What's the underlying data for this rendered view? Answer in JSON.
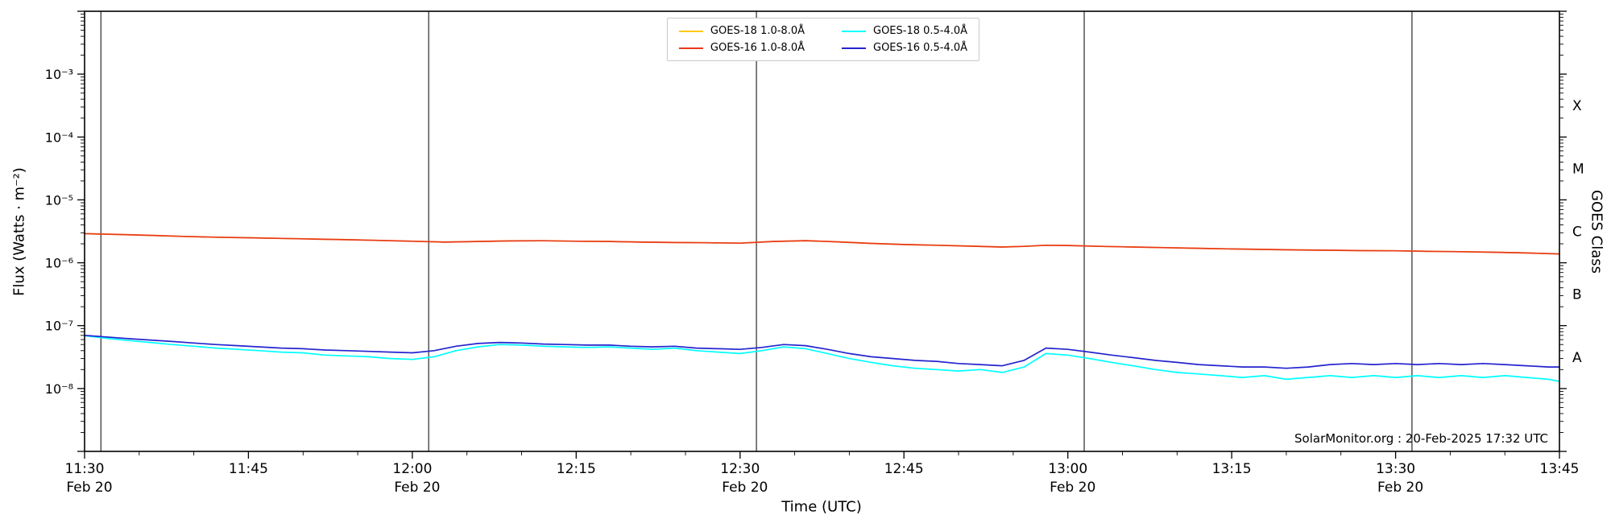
{
  "figure": {
    "background": "#ffffff",
    "watermark": "SolarMonitor.org : 20-Feb-2025 17:32 UTC"
  },
  "chart_data": {
    "type": "line",
    "title": "",
    "xlabel": "Time (UTC)",
    "ylabel_left": "Flux (Watts · m⁻²)",
    "ylabel_right": "GOES Class",
    "x_axis_unit": "minutes after 11:30 UTC, 20-Feb-2025",
    "x_range_minutes": 135,
    "x_minor_step": 5,
    "ylim": [
      1e-09,
      0.01
    ],
    "y_scale": "log",
    "grid": false,
    "vline_color": "#3a3a3a",
    "vlines_minutes": [
      1.5,
      31.5,
      61.5,
      91.5,
      121.5
    ],
    "x_ticks": [
      {
        "minutes": 0,
        "time": "11:30",
        "date": "Feb 20"
      },
      {
        "minutes": 15,
        "time": "11:45"
      },
      {
        "minutes": 30,
        "time": "12:00",
        "date": "Feb 20"
      },
      {
        "minutes": 45,
        "time": "12:15"
      },
      {
        "minutes": 60,
        "time": "12:30",
        "date": "Feb 20"
      },
      {
        "minutes": 75,
        "time": "12:45"
      },
      {
        "minutes": 90,
        "time": "13:00",
        "date": "Feb 20"
      },
      {
        "minutes": 105,
        "time": "13:15"
      },
      {
        "minutes": 120,
        "time": "13:30",
        "date": "Feb 20"
      },
      {
        "minutes": 135,
        "time": "13:45"
      }
    ],
    "y_ticks": [
      {
        "exp": -3,
        "label": "10⁻³"
      },
      {
        "exp": -4,
        "label": "10⁻⁴"
      },
      {
        "exp": -5,
        "label": "10⁻⁵"
      },
      {
        "exp": -6,
        "label": "10⁻⁶"
      },
      {
        "exp": -7,
        "label": "10⁻⁷"
      },
      {
        "exp": -8,
        "label": "10⁻⁸"
      }
    ],
    "goes_classes": [
      {
        "label": "X",
        "log_mid": -3.5
      },
      {
        "label": "M",
        "log_mid": -4.5
      },
      {
        "label": "C",
        "log_mid": -5.5
      },
      {
        "label": "B",
        "log_mid": -6.5
      },
      {
        "label": "A",
        "log_mid": -7.5
      }
    ],
    "legend_display_order": [
      0,
      2,
      1,
      3
    ],
    "series": [
      {
        "id": "goes18-long",
        "name": "GOES-18 1.0-8.0Å",
        "color": "#ffc800",
        "points": [
          [
            0,
            2.9e-06
          ],
          [
            3,
            2.82e-06
          ],
          [
            6,
            2.73e-06
          ],
          [
            9,
            2.63e-06
          ],
          [
            12,
            2.55e-06
          ],
          [
            15,
            2.5e-06
          ],
          [
            18,
            2.44e-06
          ],
          [
            21,
            2.38e-06
          ],
          [
            24,
            2.33e-06
          ],
          [
            27,
            2.27e-06
          ],
          [
            30,
            2.2e-06
          ],
          [
            33,
            2.13e-06
          ],
          [
            36,
            2.18e-06
          ],
          [
            39,
            2.23e-06
          ],
          [
            42,
            2.24e-06
          ],
          [
            45,
            2.2e-06
          ],
          [
            48,
            2.18e-06
          ],
          [
            51,
            2.13e-06
          ],
          [
            54,
            2.1e-06
          ],
          [
            57,
            2.08e-06
          ],
          [
            60,
            2.05e-06
          ],
          [
            63,
            2.18e-06
          ],
          [
            66,
            2.25e-06
          ],
          [
            69,
            2.15e-06
          ],
          [
            72,
            2.03e-06
          ],
          [
            75,
            1.95e-06
          ],
          [
            78,
            1.9e-06
          ],
          [
            81,
            1.84e-06
          ],
          [
            84,
            1.78e-06
          ],
          [
            86,
            1.82e-06
          ],
          [
            88,
            1.9e-06
          ],
          [
            90,
            1.88e-06
          ],
          [
            93,
            1.82e-06
          ],
          [
            96,
            1.78e-06
          ],
          [
            99,
            1.74e-06
          ],
          [
            102,
            1.7e-06
          ],
          [
            105,
            1.66e-06
          ],
          [
            108,
            1.63e-06
          ],
          [
            111,
            1.6e-06
          ],
          [
            114,
            1.58e-06
          ],
          [
            117,
            1.56e-06
          ],
          [
            120,
            1.55e-06
          ],
          [
            123,
            1.52e-06
          ],
          [
            126,
            1.5e-06
          ],
          [
            129,
            1.47e-06
          ],
          [
            132,
            1.43e-06
          ],
          [
            135,
            1.38e-06
          ]
        ]
      },
      {
        "id": "goes16-long",
        "name": "GOES-16 1.0-8.0Å",
        "color": "#e8391c",
        "points": [
          [
            0,
            2.9e-06
          ],
          [
            3,
            2.82e-06
          ],
          [
            6,
            2.73e-06
          ],
          [
            9,
            2.63e-06
          ],
          [
            12,
            2.55e-06
          ],
          [
            15,
            2.5e-06
          ],
          [
            18,
            2.44e-06
          ],
          [
            21,
            2.38e-06
          ],
          [
            24,
            2.33e-06
          ],
          [
            27,
            2.27e-06
          ],
          [
            30,
            2.2e-06
          ],
          [
            33,
            2.13e-06
          ],
          [
            36,
            2.18e-06
          ],
          [
            39,
            2.23e-06
          ],
          [
            42,
            2.24e-06
          ],
          [
            45,
            2.2e-06
          ],
          [
            48,
            2.18e-06
          ],
          [
            51,
            2.13e-06
          ],
          [
            54,
            2.1e-06
          ],
          [
            57,
            2.08e-06
          ],
          [
            60,
            2.05e-06
          ],
          [
            63,
            2.18e-06
          ],
          [
            66,
            2.25e-06
          ],
          [
            69,
            2.15e-06
          ],
          [
            72,
            2.03e-06
          ],
          [
            75,
            1.95e-06
          ],
          [
            78,
            1.9e-06
          ],
          [
            81,
            1.84e-06
          ],
          [
            84,
            1.78e-06
          ],
          [
            86,
            1.82e-06
          ],
          [
            88,
            1.9e-06
          ],
          [
            90,
            1.88e-06
          ],
          [
            93,
            1.82e-06
          ],
          [
            96,
            1.78e-06
          ],
          [
            99,
            1.74e-06
          ],
          [
            102,
            1.7e-06
          ],
          [
            105,
            1.66e-06
          ],
          [
            108,
            1.63e-06
          ],
          [
            111,
            1.6e-06
          ],
          [
            114,
            1.58e-06
          ],
          [
            117,
            1.56e-06
          ],
          [
            120,
            1.55e-06
          ],
          [
            123,
            1.52e-06
          ],
          [
            126,
            1.5e-06
          ],
          [
            129,
            1.47e-06
          ],
          [
            132,
            1.43e-06
          ],
          [
            135,
            1.38e-06
          ]
        ]
      },
      {
        "id": "goes18-short",
        "name": "GOES-18 0.5-4.0Å",
        "color": "#00ffff",
        "points": [
          [
            0,
            6.9e-08
          ],
          [
            2,
            6.3e-08
          ],
          [
            4,
            5.8e-08
          ],
          [
            6,
            5.4e-08
          ],
          [
            8,
            5e-08
          ],
          [
            10,
            4.7e-08
          ],
          [
            12,
            4.4e-08
          ],
          [
            14,
            4.2e-08
          ],
          [
            16,
            4e-08
          ],
          [
            18,
            3.8e-08
          ],
          [
            20,
            3.7e-08
          ],
          [
            22,
            3.4e-08
          ],
          [
            24,
            3.3e-08
          ],
          [
            26,
            3.2e-08
          ],
          [
            28,
            3e-08
          ],
          [
            30,
            2.9e-08
          ],
          [
            32,
            3.2e-08
          ],
          [
            34,
            4e-08
          ],
          [
            36,
            4.6e-08
          ],
          [
            38,
            5e-08
          ],
          [
            40,
            4.9e-08
          ],
          [
            42,
            4.7e-08
          ],
          [
            44,
            4.6e-08
          ],
          [
            46,
            4.5e-08
          ],
          [
            48,
            4.6e-08
          ],
          [
            50,
            4.4e-08
          ],
          [
            52,
            4.2e-08
          ],
          [
            54,
            4.4e-08
          ],
          [
            56,
            4e-08
          ],
          [
            58,
            3.8e-08
          ],
          [
            60,
            3.6e-08
          ],
          [
            62,
            4e-08
          ],
          [
            64,
            4.6e-08
          ],
          [
            66,
            4.3e-08
          ],
          [
            68,
            3.6e-08
          ],
          [
            70,
            3e-08
          ],
          [
            72,
            2.6e-08
          ],
          [
            74,
            2.3e-08
          ],
          [
            76,
            2.1e-08
          ],
          [
            78,
            2e-08
          ],
          [
            80,
            1.9e-08
          ],
          [
            82,
            2e-08
          ],
          [
            84,
            1.8e-08
          ],
          [
            86,
            2.2e-08
          ],
          [
            88,
            3.6e-08
          ],
          [
            90,
            3.4e-08
          ],
          [
            92,
            3e-08
          ],
          [
            94,
            2.6e-08
          ],
          [
            96,
            2.3e-08
          ],
          [
            98,
            2e-08
          ],
          [
            100,
            1.8e-08
          ],
          [
            102,
            1.7e-08
          ],
          [
            104,
            1.6e-08
          ],
          [
            106,
            1.5e-08
          ],
          [
            108,
            1.6e-08
          ],
          [
            110,
            1.4e-08
          ],
          [
            112,
            1.5e-08
          ],
          [
            114,
            1.6e-08
          ],
          [
            116,
            1.5e-08
          ],
          [
            118,
            1.6e-08
          ],
          [
            120,
            1.5e-08
          ],
          [
            122,
            1.6e-08
          ],
          [
            124,
            1.5e-08
          ],
          [
            126,
            1.6e-08
          ],
          [
            128,
            1.5e-08
          ],
          [
            130,
            1.6e-08
          ],
          [
            132,
            1.5e-08
          ],
          [
            134,
            1.4e-08
          ],
          [
            135,
            1.3e-08
          ]
        ]
      },
      {
        "id": "goes16-short",
        "name": "GOES-16 0.5-4.0Å",
        "color": "#2424cf",
        "points": [
          [
            0,
            7e-08
          ],
          [
            2,
            6.6e-08
          ],
          [
            4,
            6.2e-08
          ],
          [
            6,
            5.9e-08
          ],
          [
            8,
            5.6e-08
          ],
          [
            10,
            5.3e-08
          ],
          [
            12,
            5e-08
          ],
          [
            14,
            4.8e-08
          ],
          [
            16,
            4.6e-08
          ],
          [
            18,
            4.4e-08
          ],
          [
            20,
            4.3e-08
          ],
          [
            22,
            4.1e-08
          ],
          [
            24,
            4e-08
          ],
          [
            26,
            3.9e-08
          ],
          [
            28,
            3.8e-08
          ],
          [
            30,
            3.7e-08
          ],
          [
            32,
            4e-08
          ],
          [
            34,
            4.7e-08
          ],
          [
            36,
            5.2e-08
          ],
          [
            38,
            5.4e-08
          ],
          [
            40,
            5.3e-08
          ],
          [
            42,
            5.1e-08
          ],
          [
            44,
            5e-08
          ],
          [
            46,
            4.9e-08
          ],
          [
            48,
            4.9e-08
          ],
          [
            50,
            4.7e-08
          ],
          [
            52,
            4.6e-08
          ],
          [
            54,
            4.7e-08
          ],
          [
            56,
            4.4e-08
          ],
          [
            58,
            4.3e-08
          ],
          [
            60,
            4.2e-08
          ],
          [
            62,
            4.5e-08
          ],
          [
            64,
            5e-08
          ],
          [
            66,
            4.8e-08
          ],
          [
            68,
            4.2e-08
          ],
          [
            70,
            3.6e-08
          ],
          [
            72,
            3.2e-08
          ],
          [
            74,
            3e-08
          ],
          [
            76,
            2.8e-08
          ],
          [
            78,
            2.7e-08
          ],
          [
            80,
            2.5e-08
          ],
          [
            82,
            2.4e-08
          ],
          [
            84,
            2.3e-08
          ],
          [
            86,
            2.8e-08
          ],
          [
            88,
            4.4e-08
          ],
          [
            90,
            4.2e-08
          ],
          [
            92,
            3.8e-08
          ],
          [
            94,
            3.4e-08
          ],
          [
            96,
            3.1e-08
          ],
          [
            98,
            2.8e-08
          ],
          [
            100,
            2.6e-08
          ],
          [
            102,
            2.4e-08
          ],
          [
            104,
            2.3e-08
          ],
          [
            106,
            2.2e-08
          ],
          [
            108,
            2.2e-08
          ],
          [
            110,
            2.1e-08
          ],
          [
            112,
            2.2e-08
          ],
          [
            114,
            2.4e-08
          ],
          [
            116,
            2.5e-08
          ],
          [
            118,
            2.4e-08
          ],
          [
            120,
            2.5e-08
          ],
          [
            122,
            2.4e-08
          ],
          [
            124,
            2.5e-08
          ],
          [
            126,
            2.4e-08
          ],
          [
            128,
            2.5e-08
          ],
          [
            130,
            2.4e-08
          ],
          [
            132,
            2.3e-08
          ],
          [
            134,
            2.2e-08
          ],
          [
            135,
            2.2e-08
          ]
        ]
      }
    ]
  }
}
